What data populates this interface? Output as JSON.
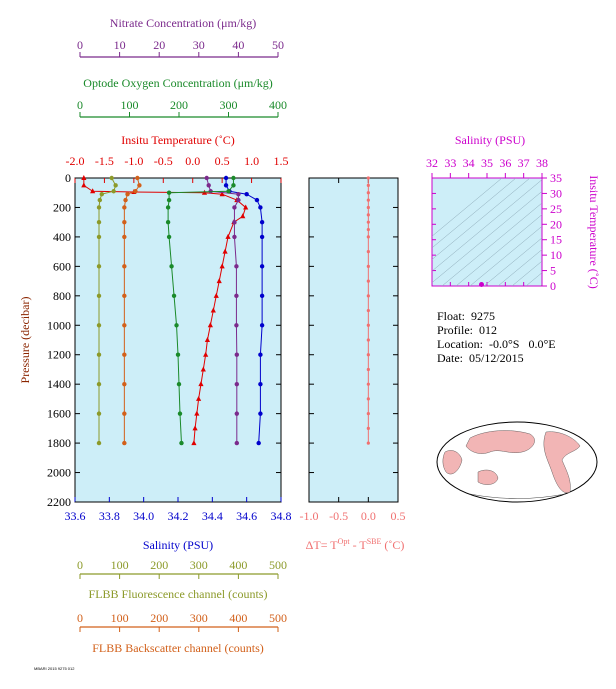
{
  "float_info": {
    "float": "Float:  9275",
    "profile": "Profile:  012",
    "location": "Location:  -0.0°S   0.0°E",
    "date": "Date:  05/12/2015"
  },
  "footer_text": "MBARI 2015 9275 012",
  "colors": {
    "nitrate": "#7b2a8c",
    "oxygen": "#1a8a2a",
    "temperature": "#e00000",
    "salinity": "#0000cc",
    "fluorescence": "#8c9a2a",
    "backscatter": "#d2601a",
    "at": "#f07070",
    "magenta": "#cc00cc",
    "panel_bg": "#cdeef8"
  },
  "chart_data": [
    {
      "id": "main-profile",
      "type": "line",
      "y_axis": {
        "label": "Pressure (decibar)",
        "range": [
          2200,
          0
        ],
        "ticks": [
          0,
          200,
          400,
          600,
          800,
          1000,
          1200,
          1400,
          1600,
          1800,
          2000,
          2200
        ]
      },
      "axes": [
        {
          "key": "nitrate",
          "label": "Nitrate Concentration (μm/kg)",
          "range": [
            0,
            50
          ],
          "ticks": [
            0,
            10,
            20,
            30,
            40,
            50
          ]
        },
        {
          "key": "oxygen",
          "label": "Optode Oxygen Concentration (μm/kg)",
          "range": [
            0,
            400
          ],
          "ticks": [
            0,
            100,
            200,
            300,
            400
          ]
        },
        {
          "key": "temperature",
          "label": "Insitu Temperature (˚C)",
          "range": [
            -2.0,
            1.5
          ],
          "ticks": [
            "-2.0",
            "-1.5",
            "-1.0",
            "-0.5",
            "0.0",
            "0.5",
            "1.0",
            "1.5"
          ]
        },
        {
          "key": "salinity",
          "label": "Salinity (PSU)",
          "range": [
            33.6,
            34.8
          ],
          "ticks": [
            "33.6",
            "33.8",
            "34.0",
            "34.2",
            "34.4",
            "34.6",
            "34.8"
          ]
        },
        {
          "key": "fluorescence",
          "label": "FLBB Fluorescence channel (counts)",
          "range": [
            0,
            500
          ],
          "ticks": [
            0,
            100,
            200,
            300,
            400,
            500
          ]
        },
        {
          "key": "backscatter",
          "label": "FLBB Backscatter channel (counts)",
          "range": [
            0,
            500
          ],
          "ticks": [
            0,
            100,
            200,
            300,
            400,
            500
          ]
        }
      ],
      "series": [
        {
          "key": "temperature",
          "axis": "temperature",
          "marker": "triangle",
          "points": [
            [
              -1.85,
              0
            ],
            [
              -1.85,
              50
            ],
            [
              -1.7,
              90
            ],
            [
              -1.0,
              95
            ],
            [
              0.2,
              100
            ],
            [
              0.5,
              110
            ],
            [
              0.75,
              150
            ],
            [
              0.9,
              200
            ],
            [
              0.85,
              260
            ],
            [
              0.7,
              300
            ],
            [
              0.6,
              400
            ],
            [
              0.55,
              500
            ],
            [
              0.5,
              600
            ],
            [
              0.45,
              700
            ],
            [
              0.4,
              800
            ],
            [
              0.35,
              900
            ],
            [
              0.3,
              1000
            ],
            [
              0.25,
              1100
            ],
            [
              0.22,
              1200
            ],
            [
              0.18,
              1300
            ],
            [
              0.14,
              1400
            ],
            [
              0.1,
              1500
            ],
            [
              0.07,
              1600
            ],
            [
              0.04,
              1700
            ],
            [
              0.02,
              1800
            ]
          ]
        },
        {
          "key": "salinity",
          "axis": "salinity",
          "marker": "dot",
          "points": [
            [
              34.48,
              0
            ],
            [
              34.48,
              50
            ],
            [
              34.5,
              90
            ],
            [
              34.6,
              110
            ],
            [
              34.66,
              150
            ],
            [
              34.68,
              200
            ],
            [
              34.69,
              300
            ],
            [
              34.69,
              400
            ],
            [
              34.69,
              600
            ],
            [
              34.69,
              800
            ],
            [
              34.69,
              1000
            ],
            [
              34.68,
              1200
            ],
            [
              34.68,
              1400
            ],
            [
              34.68,
              1600
            ],
            [
              34.67,
              1800
            ]
          ]
        },
        {
          "key": "nitrate",
          "axis": "nitrate",
          "marker": "dot",
          "points": [
            [
              32.0,
              0
            ],
            [
              32.5,
              50
            ],
            [
              33,
              90
            ],
            [
              40,
              110
            ],
            [
              40,
              150
            ],
            [
              39,
              200
            ],
            [
              39,
              300
            ],
            [
              39,
              400
            ],
            [
              39.5,
              600
            ],
            [
              39.5,
              800
            ],
            [
              39.5,
              1000
            ],
            [
              39.6,
              1200
            ],
            [
              39.6,
              1400
            ],
            [
              39.6,
              1600
            ],
            [
              39.6,
              1800
            ]
          ]
        },
        {
          "key": "oxygen",
          "axis": "oxygen",
          "marker": "dot",
          "points": [
            [
              310,
              0
            ],
            [
              310,
              50
            ],
            [
              300,
              90
            ],
            [
              180,
              100
            ],
            [
              180,
              150
            ],
            [
              178,
              200
            ],
            [
              178,
              300
            ],
            [
              180,
              400
            ],
            [
              185,
              600
            ],
            [
              190,
              800
            ],
            [
              195,
              1000
            ],
            [
              198,
              1200
            ],
            [
              200,
              1400
            ],
            [
              202,
              1600
            ],
            [
              205,
              1800
            ]
          ]
        },
        {
          "key": "fluorescence",
          "axis": "fluorescence",
          "marker": "dot",
          "points": [
            [
              80,
              0
            ],
            [
              90,
              50
            ],
            [
              85,
              90
            ],
            [
              55,
              110
            ],
            [
              50,
              150
            ],
            [
              48,
              200
            ],
            [
              48,
              300
            ],
            [
              48,
              400
            ],
            [
              48,
              600
            ],
            [
              48,
              800
            ],
            [
              48,
              1000
            ],
            [
              48,
              1200
            ],
            [
              48,
              1400
            ],
            [
              48,
              1600
            ],
            [
              48,
              1800
            ]
          ]
        },
        {
          "key": "backscatter",
          "axis": "backscatter",
          "marker": "dot",
          "points": [
            [
              145,
              0
            ],
            [
              150,
              50
            ],
            [
              140,
              90
            ],
            [
              120,
              110
            ],
            [
              115,
              150
            ],
            [
              112,
              200
            ],
            [
              112,
              300
            ],
            [
              112,
              400
            ],
            [
              112,
              600
            ],
            [
              112,
              800
            ],
            [
              112,
              1000
            ],
            [
              112,
              1200
            ],
            [
              112,
              1400
            ],
            [
              112,
              1600
            ],
            [
              112,
              1800
            ]
          ]
        }
      ]
    },
    {
      "id": "at-panel",
      "type": "line",
      "x_axis": {
        "label_prefix": "ΔT= T",
        "label_sup1": "Opt",
        "label_mid": " - T",
        "label_sup2": "SBE",
        "label_suffix": " (˚C)",
        "range": [
          -1.0,
          0.5
        ],
        "ticks": [
          "-1.0",
          "-0.5",
          "0.0",
          "0.5"
        ]
      },
      "y_range": [
        2200,
        0
      ],
      "points": [
        [
          0.0,
          0
        ],
        [
          0.0,
          50
        ],
        [
          0.0,
          100
        ],
        [
          0.0,
          150
        ],
        [
          0.0,
          200
        ],
        [
          0.0,
          250
        ],
        [
          0.0,
          300
        ],
        [
          0.0,
          350
        ],
        [
          0.0,
          400
        ],
        [
          0.0,
          500
        ],
        [
          0.0,
          600
        ],
        [
          0.0,
          700
        ],
        [
          0.0,
          800
        ],
        [
          0.0,
          900
        ],
        [
          0.0,
          1000
        ],
        [
          0.0,
          1100
        ],
        [
          0.0,
          1200
        ],
        [
          0.0,
          1300
        ],
        [
          0.0,
          1400
        ],
        [
          0.0,
          1500
        ],
        [
          0.0,
          1600
        ],
        [
          0.0,
          1700
        ],
        [
          0.0,
          1800
        ]
      ]
    },
    {
      "id": "ts-diagram",
      "type": "scatter",
      "x_axis": {
        "label": "Salinity (PSU)",
        "range": [
          32,
          38
        ],
        "ticks": [
          32,
          33,
          34,
          35,
          36,
          37,
          38
        ]
      },
      "y_axis": {
        "label": "Insitu Temperature (˚C)",
        "range": [
          0,
          35
        ],
        "ticks": [
          0,
          5,
          10,
          15,
          20,
          25,
          30,
          35
        ]
      },
      "points": [
        [
          34.7,
          0.5
        ]
      ]
    }
  ],
  "map": {
    "label": "world-map",
    "marker_lon": 0.0,
    "marker_lat": -0.0
  }
}
